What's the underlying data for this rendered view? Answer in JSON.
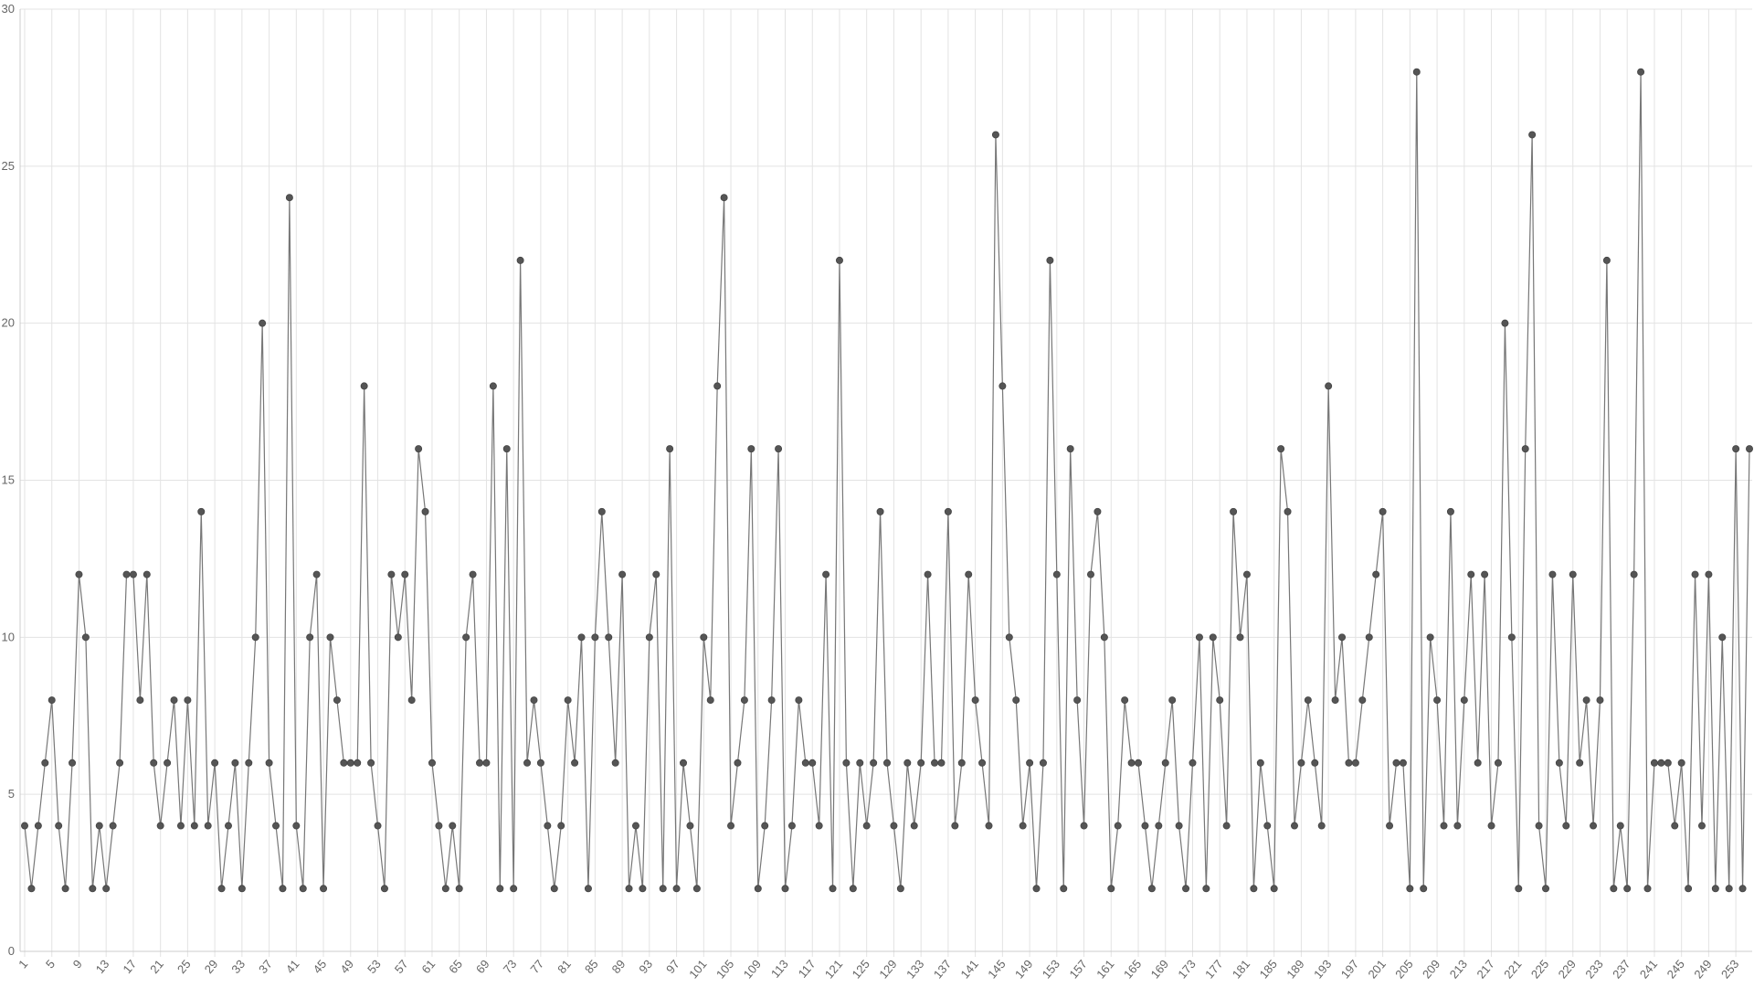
{
  "chart_data": {
    "type": "line",
    "x": [
      1,
      2,
      3,
      4,
      5,
      6,
      7,
      8,
      9,
      10,
      11,
      12,
      13,
      14,
      15,
      16,
      17,
      18,
      19,
      20,
      21,
      22,
      23,
      24,
      25,
      26,
      27,
      28,
      29,
      30,
      31,
      32,
      33,
      34,
      35,
      36,
      37,
      38,
      39,
      40,
      41,
      42,
      43,
      44,
      45,
      46,
      47,
      48,
      49,
      50,
      51,
      52,
      53,
      54,
      55,
      56,
      57,
      58,
      59,
      60,
      61,
      62,
      63,
      64,
      65,
      66,
      67,
      68,
      69,
      70,
      71,
      72,
      73,
      74,
      75,
      76,
      77,
      78,
      79,
      80,
      81,
      82,
      83,
      84,
      85,
      86,
      87,
      88,
      89,
      90,
      91,
      92,
      93,
      94,
      95,
      96,
      97,
      98,
      99,
      100,
      101,
      102,
      103,
      104,
      105,
      106,
      107,
      108,
      109,
      110,
      111,
      112,
      113,
      114,
      115,
      116,
      117,
      118,
      119,
      120,
      121,
      122,
      123,
      124,
      125,
      126,
      127,
      128,
      129,
      130,
      131,
      132,
      133,
      134,
      135,
      136,
      137,
      138,
      139,
      140,
      141,
      142,
      143,
      144,
      145,
      146,
      147,
      148,
      149,
      150,
      151,
      152,
      153,
      154,
      155,
      156,
      157,
      158,
      159,
      160,
      161,
      162,
      163,
      164,
      165,
      166,
      167,
      168,
      169,
      170,
      171,
      172,
      173,
      174,
      175,
      176,
      177,
      178,
      179,
      180,
      181,
      182,
      183,
      184,
      185,
      186,
      187,
      188,
      189,
      190,
      191,
      192,
      193,
      194,
      195,
      196,
      197,
      198,
      199,
      200,
      201,
      202,
      203,
      204,
      205,
      206,
      207,
      208,
      209,
      210,
      211,
      212,
      213,
      214,
      215,
      216,
      217,
      218,
      219,
      220,
      221,
      222,
      223,
      224,
      225,
      226,
      227,
      228,
      229,
      230,
      231,
      232,
      233,
      234,
      235,
      236,
      237,
      238,
      239,
      240,
      241,
      242,
      243,
      244,
      245,
      246,
      247,
      248,
      249,
      250,
      251,
      252,
      253,
      254,
      255
    ],
    "values": [
      4,
      2,
      4,
      6,
      8,
      4,
      2,
      6,
      12,
      10,
      2,
      4,
      2,
      4,
      6,
      12,
      12,
      8,
      12,
      6,
      4,
      6,
      8,
      4,
      8,
      4,
      14,
      4,
      6,
      2,
      4,
      6,
      2,
      6,
      10,
      20,
      6,
      4,
      2,
      24,
      4,
      2,
      10,
      12,
      2,
      10,
      8,
      6,
      6,
      6,
      18,
      6,
      4,
      2,
      12,
      10,
      12,
      8,
      16,
      14,
      6,
      4,
      2,
      4,
      2,
      10,
      12,
      6,
      6,
      18,
      2,
      16,
      2,
      22,
      6,
      8,
      6,
      4,
      2,
      4,
      8,
      6,
      10,
      2,
      10,
      14,
      10,
      6,
      12,
      2,
      4,
      2,
      10,
      12,
      2,
      16,
      2,
      6,
      4,
      2,
      10,
      8,
      18,
      24,
      4,
      6,
      8,
      16,
      2,
      4,
      8,
      16,
      2,
      4,
      8,
      6,
      6,
      4,
      12,
      2,
      22,
      6,
      2,
      6,
      4,
      6,
      14,
      6,
      4,
      2,
      6,
      4,
      6,
      12,
      6,
      6,
      14,
      4,
      6,
      12,
      8,
      6,
      4,
      26,
      18,
      10,
      8,
      4,
      6,
      2,
      6,
      22,
      12,
      2,
      16,
      8,
      4,
      12,
      14,
      10,
      2,
      4,
      8,
      6,
      6,
      4,
      2,
      4,
      6,
      8,
      4,
      2,
      6,
      10,
      2,
      10,
      8,
      4,
      14,
      10,
      12,
      2,
      6,
      4,
      2,
      16,
      14,
      4,
      6,
      8,
      6,
      4,
      18,
      8,
      10,
      6,
      6,
      8,
      10,
      12,
      14,
      4,
      6,
      6,
      2,
      28,
      2,
      10,
      8,
      4,
      14,
      4,
      8,
      12,
      6,
      12,
      4,
      6,
      20,
      10,
      2,
      16,
      26,
      4,
      2,
      12,
      6,
      4,
      12,
      6,
      8,
      4,
      8,
      22,
      2,
      4,
      2,
      12,
      28,
      2,
      6,
      6,
      6,
      4,
      6,
      2,
      12,
      4,
      12,
      2,
      10,
      2,
      16,
      2,
      16
    ],
    "color": "#555555",
    "line_color": "#777777",
    "xlim": [
      1,
      255
    ],
    "xticks": [
      1,
      5,
      9,
      13,
      17,
      21,
      25,
      29,
      33,
      37,
      41,
      45,
      49,
      53,
      57,
      61,
      65,
      69,
      73,
      77,
      81,
      85,
      89,
      93,
      97,
      101,
      105,
      109,
      113,
      117,
      121,
      125,
      129,
      133,
      137,
      141,
      145,
      149,
      153,
      157,
      161,
      165,
      169,
      173,
      177,
      181,
      185,
      189,
      193,
      197,
      201,
      205,
      209,
      213,
      217,
      221,
      225,
      229,
      233,
      237,
      241,
      245,
      249,
      253
    ],
    "ylim": [
      0,
      30
    ],
    "yticks": [
      0,
      5,
      10,
      15,
      20,
      25,
      30
    ],
    "grid": true
  }
}
